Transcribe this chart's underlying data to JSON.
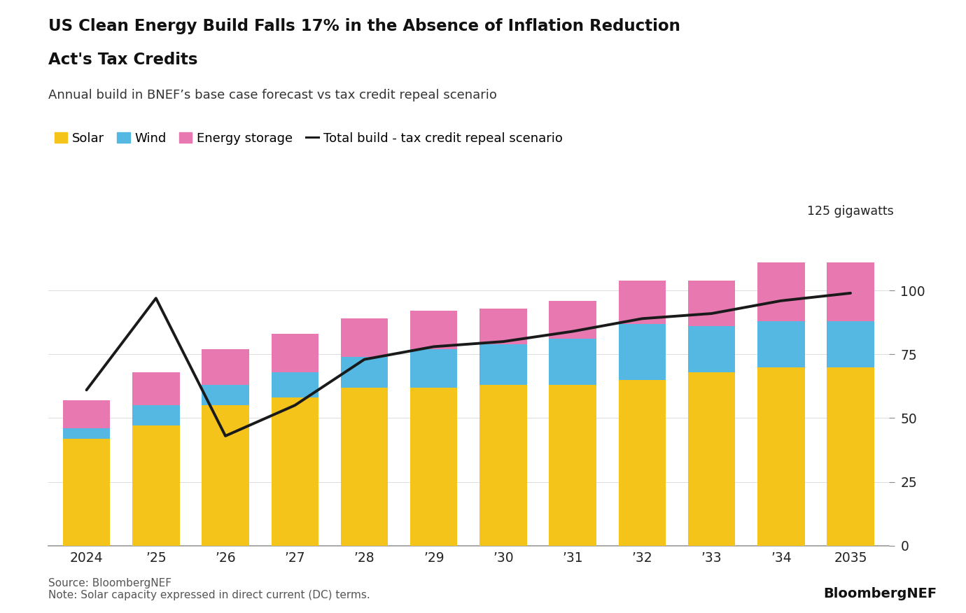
{
  "title_line1": "US Clean Energy Build Falls 17% in the Absence of Inflation Reduction",
  "title_line2": "Act's Tax Credits",
  "subtitle": "Annual build in BNEF’s base case forecast vs tax credit repeal scenario",
  "x_labels": [
    "2024",
    "’25",
    "’26",
    "’27",
    "’28",
    "’29",
    "’30",
    "’31",
    "’32",
    "’33",
    "’34",
    "2035"
  ],
  "solar": [
    42,
    47,
    55,
    58,
    62,
    62,
    63,
    63,
    65,
    68,
    70,
    70
  ],
  "wind": [
    4,
    8,
    8,
    10,
    12,
    15,
    16,
    18,
    22,
    18,
    18,
    18
  ],
  "storage": [
    11,
    13,
    14,
    15,
    15,
    15,
    14,
    15,
    17,
    18,
    23,
    23
  ],
  "repeal_line": [
    61,
    97,
    43,
    55,
    73,
    78,
    80,
    84,
    89,
    91,
    96,
    99
  ],
  "solar_color": "#F5C41A",
  "wind_color": "#55B8E3",
  "storage_color": "#E878B0",
  "line_color": "#1a1a1a",
  "bg_color": "#ffffff",
  "ylim": [
    0,
    125
  ],
  "yticks": [
    0,
    25,
    50,
    75,
    100
  ],
  "ylabel_top": "125 gigawatts",
  "source_text": "Source: BloombergNEF\nNote: Solar capacity expressed in direct current (DC) terms.",
  "brand_text": "BloombergNEF"
}
